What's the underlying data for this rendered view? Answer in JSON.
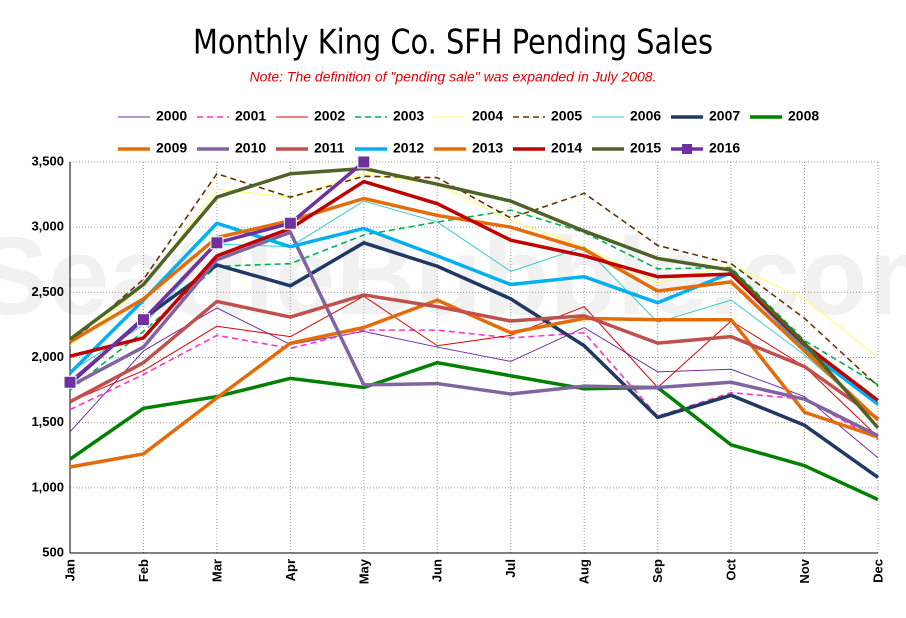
{
  "chart_data": {
    "type": "line",
    "title": "Monthly King Co. SFH Pending Sales",
    "subtitle": "Note: The definition of \"pending sale\" was expanded in July 2008.",
    "watermark": "SeattleBubble.com",
    "categories": [
      "Jan",
      "Feb",
      "Mar",
      "Apr",
      "May",
      "Jun",
      "Jul",
      "Aug",
      "Sep",
      "Oct",
      "Nov",
      "Dec"
    ],
    "ylim": [
      500,
      3500
    ],
    "yticks": [
      {
        "value": 500,
        "label": "500"
      },
      {
        "value": 1000,
        "label": "1,000"
      },
      {
        "value": 1500,
        "label": "1,500"
      },
      {
        "value": 2000,
        "label": "2,000"
      },
      {
        "value": 2500,
        "label": "2,500"
      },
      {
        "value": 3000,
        "label": "3,000"
      },
      {
        "value": 3500,
        "label": "3,500"
      }
    ],
    "grid": true,
    "series": [
      {
        "name": "2000",
        "color": "#7030a0",
        "style": "thin",
        "values": [
          1430,
          2050,
          2380,
          2100,
          2200,
          2080,
          1970,
          2230,
          1890,
          1910,
          1700,
          1230
        ]
      },
      {
        "name": "2001",
        "color": "#ff33cc",
        "style": "dashed",
        "values": [
          1600,
          1870,
          2170,
          2070,
          2210,
          2210,
          2150,
          2190,
          1550,
          1730,
          1680,
          1370
        ]
      },
      {
        "name": "2002",
        "color": "#e00000",
        "style": "thin",
        "values": [
          1660,
          1900,
          2240,
          2160,
          2470,
          2090,
          2170,
          2390,
          1770,
          2280,
          1930,
          1390
        ]
      },
      {
        "name": "2003",
        "color": "#00b050",
        "style": "dashed",
        "values": [
          1750,
          2200,
          2700,
          2720,
          2940,
          3040,
          3130,
          2960,
          2680,
          2690,
          2130,
          1790
        ]
      },
      {
        "name": "2004",
        "color": "#ffff66",
        "style": "thin",
        "values": [
          2090,
          2550,
          3290,
          3230,
          3410,
          3330,
          3050,
          2850,
          2570,
          2710,
          2450,
          2000
        ]
      },
      {
        "name": "2005",
        "color": "#663300",
        "style": "dashed",
        "values": [
          2110,
          2600,
          3410,
          3230,
          3390,
          3380,
          3070,
          3260,
          2860,
          2720,
          2300,
          1780
        ]
      },
      {
        "name": "2006",
        "color": "#33cccc",
        "style": "thin",
        "values": [
          1890,
          2250,
          2870,
          2850,
          3200,
          3040,
          2660,
          2850,
          2270,
          2440,
          2020,
          1530
        ]
      },
      {
        "name": "2007",
        "color": "#1f3864",
        "style": "thick",
        "values": [
          1800,
          2300,
          2710,
          2550,
          2880,
          2700,
          2450,
          2090,
          1540,
          1710,
          1480,
          1080
        ]
      },
      {
        "name": "2008",
        "color": "#008000",
        "style": "thick",
        "values": [
          1220,
          1610,
          1700,
          1840,
          1770,
          1960,
          1860,
          1760,
          1770,
          1330,
          1170,
          910
        ]
      },
      {
        "name": "2009",
        "color": "#e36c09",
        "style": "thick",
        "values": [
          1160,
          1260,
          1690,
          2110,
          2230,
          2440,
          2190,
          2300,
          2290,
          2290,
          1580,
          1390
        ]
      },
      {
        "name": "2010",
        "color": "#8064a2",
        "style": "thick",
        "values": [
          1780,
          2080,
          2750,
          2960,
          1790,
          1800,
          1720,
          1780,
          1770,
          1810,
          1680,
          1400
        ]
      },
      {
        "name": "2011",
        "color": "#c0504d",
        "style": "thick",
        "values": [
          1660,
          1960,
          2430,
          2310,
          2480,
          2390,
          2280,
          2320,
          2110,
          2160,
          1930,
          1530
        ]
      },
      {
        "name": "2012",
        "color": "#00b0f0",
        "style": "thick",
        "values": [
          1880,
          2440,
          3030,
          2850,
          2990,
          2780,
          2560,
          2620,
          2420,
          2650,
          2070,
          1640
        ]
      },
      {
        "name": "2013",
        "color": "#e46c0a",
        "style": "thick",
        "values": [
          2120,
          2450,
          2920,
          3050,
          3220,
          3090,
          3000,
          2830,
          2510,
          2580,
          2050,
          1520
        ]
      },
      {
        "name": "2014",
        "color": "#c00000",
        "style": "thick",
        "values": [
          2010,
          2150,
          2780,
          2990,
          3350,
          3180,
          2900,
          2780,
          2620,
          2640,
          2100,
          1670
        ]
      },
      {
        "name": "2015",
        "color": "#4f6228",
        "style": "thick",
        "values": [
          2140,
          2560,
          3230,
          3410,
          3450,
          3330,
          3200,
          2970,
          2760,
          2670,
          2110,
          1460
        ]
      },
      {
        "name": "2016",
        "color": "#7030a0",
        "style": "marker",
        "values": [
          1810,
          2290,
          2880,
          3030,
          3500,
          null,
          null,
          null,
          null,
          null,
          null,
          null
        ]
      }
    ]
  }
}
